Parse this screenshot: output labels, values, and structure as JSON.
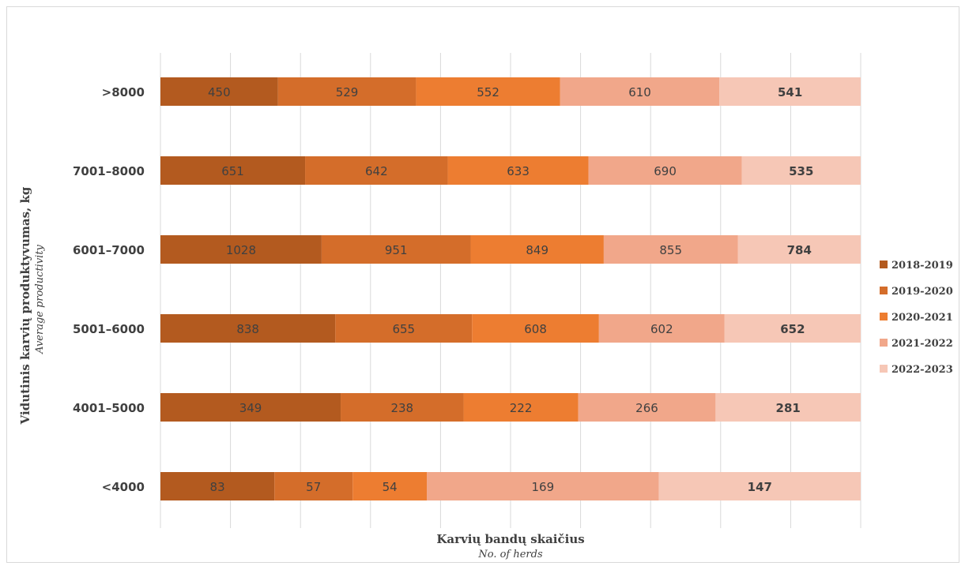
{
  "chart_data": {
    "type": "bar",
    "orientation": "horizontal",
    "stacked": "percent",
    "categories": [
      ">8000",
      "7001–8000",
      "6001–7000",
      "5001–6000",
      "4001–5000",
      "<4000"
    ],
    "series": [
      {
        "name": "2018-2019",
        "values": [
          450,
          651,
          1028,
          838,
          349,
          83
        ],
        "color": "#b35a1f"
      },
      {
        "name": "2019-2020",
        "values": [
          529,
          642,
          951,
          655,
          238,
          57
        ],
        "color": "#d46d2a"
      },
      {
        "name": "2020-2021",
        "values": [
          552,
          633,
          849,
          608,
          222,
          54
        ],
        "color": "#ed7d31"
      },
      {
        "name": "2021-2022",
        "values": [
          610,
          690,
          855,
          602,
          266,
          169
        ],
        "color": "#f1a78a"
      },
      {
        "name": "2022-2023",
        "values": [
          541,
          535,
          784,
          652,
          281,
          147
        ],
        "color": "#f6c7b6"
      }
    ],
    "xlabel": "Karvių bandų skaičius",
    "xlabel_sub": "No. of herds",
    "ylabel": "Vidutinis karvių produktyvumas, kg",
    "ylabel_sub": "Average productivity",
    "legend_position": "right",
    "grid": true,
    "bold_label_series": "2022-2023"
  }
}
